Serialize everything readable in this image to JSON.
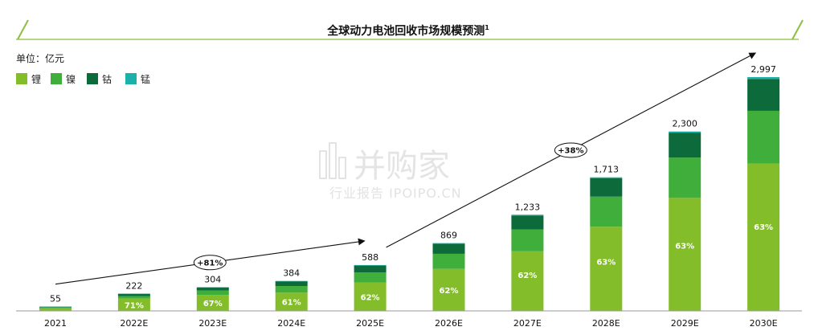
{
  "chart_data": {
    "type": "bar",
    "stacked": true,
    "title": "全球动力电池回收市场规模预测",
    "title_superscript": "1",
    "unit_label": "单位：亿元",
    "categories": [
      "2021",
      "2022E",
      "2023E",
      "2024E",
      "2025E",
      "2026E",
      "2027E",
      "2028E",
      "2029E",
      "2030E"
    ],
    "totals": [
      55,
      222,
      304,
      384,
      588,
      869,
      1233,
      1713,
      2300,
      2997
    ],
    "total_labels": [
      "55",
      "222",
      "304",
      "384",
      "588",
      "869",
      "1,233",
      "1,713",
      "2,300",
      "2,997"
    ],
    "series": [
      {
        "name": "锂",
        "color": "#84bd2a",
        "values": [
          35,
          158,
          204,
          234,
          365,
          539,
          764,
          1079,
          1449,
          1888
        ]
      },
      {
        "name": "镍",
        "color": "#3fae3a",
        "values": [
          10,
          32,
          57,
          85,
          127,
          193,
          279,
          386,
          517,
          677
        ]
      },
      {
        "name": "钴",
        "color": "#0d6b3b",
        "values": [
          9,
          29,
          39,
          61,
          89,
          129,
          180,
          237,
          319,
          409
        ]
      },
      {
        "name": "锰",
        "color": "#1ab1ab",
        "values": [
          1,
          3,
          4,
          4,
          7,
          8,
          10,
          11,
          15,
          23
        ]
      }
    ],
    "lithium_share_labels": [
      "",
      "71%",
      "67%",
      "61%",
      "62%",
      "62%",
      "62%",
      "63%",
      "63%",
      "63%"
    ],
    "growth_annotations": [
      {
        "label": "+81%",
        "from": "2021",
        "to": "2025E"
      },
      {
        "label": "+38%",
        "from": "2025E",
        "to": "2030E"
      }
    ],
    "ylim": [
      0,
      3000
    ],
    "legend_position": "top-left",
    "grid": false
  },
  "watermark": {
    "text": "并购家",
    "subtext": "行业报告 IPOIPO.CN"
  }
}
